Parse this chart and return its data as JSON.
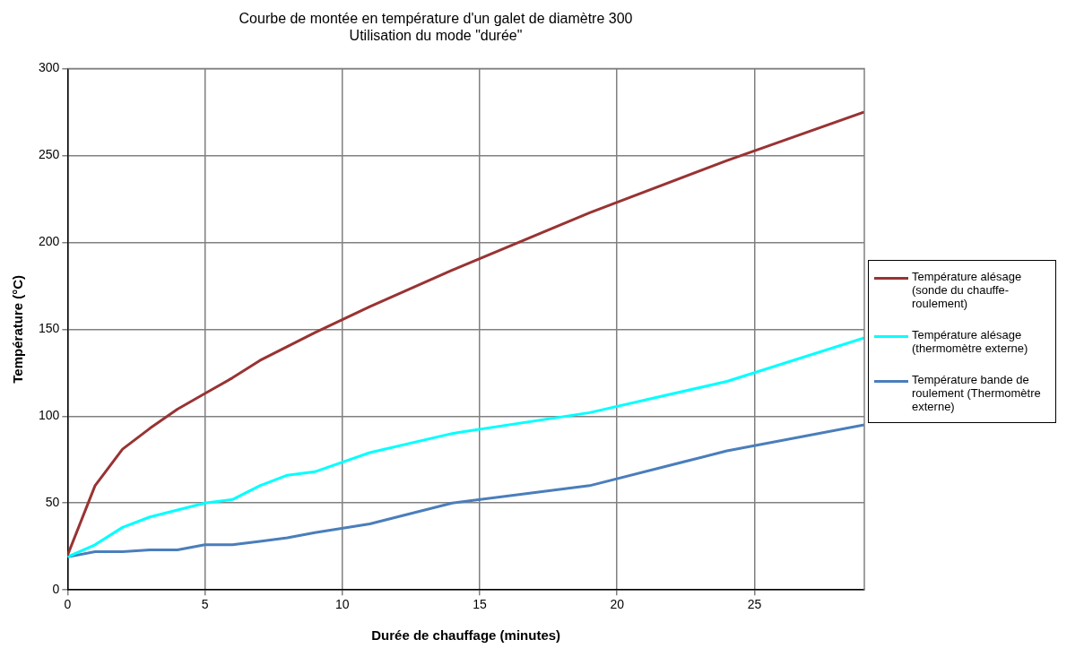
{
  "chart_data": {
    "type": "line",
    "title": "Courbe de montée en température d'un galet de diamètre 300",
    "subtitle": "Utilisation du mode \"durée\"",
    "xlabel": "Durée de chauffage (minutes)",
    "ylabel": "Température (°C)",
    "x": [
      0,
      1,
      2,
      3,
      4,
      5,
      6,
      7,
      8,
      9,
      11,
      14,
      19,
      24,
      29
    ],
    "series": [
      {
        "name": "Température alésage (sonde du chauffe-roulement)",
        "color": "#993333",
        "values": [
          20,
          60,
          81,
          93,
          104,
          113,
          122,
          132,
          140,
          148,
          163,
          184,
          217,
          247,
          275
        ]
      },
      {
        "name": "Température alésage (thermomètre externe)",
        "color": "#00ffff",
        "values": [
          19,
          26,
          36,
          42,
          46,
          50,
          52,
          60,
          66,
          68,
          79,
          90,
          102,
          120,
          145
        ]
      },
      {
        "name": "Température bande de roulement (Thermomètre externe)",
        "color": "#4a7ebb",
        "values": [
          19,
          22,
          22,
          23,
          23,
          26,
          26,
          28,
          30,
          33,
          38,
          50,
          60,
          80,
          95
        ]
      }
    ],
    "xlim": [
      0,
      29
    ],
    "xticks": [
      0,
      5,
      10,
      15,
      20,
      25
    ],
    "ylim": [
      0,
      300
    ],
    "yticks": [
      0,
      50,
      100,
      150,
      200,
      250,
      300
    ],
    "grid": true,
    "legend": "right",
    "marker": "none",
    "line_style": "solid"
  }
}
